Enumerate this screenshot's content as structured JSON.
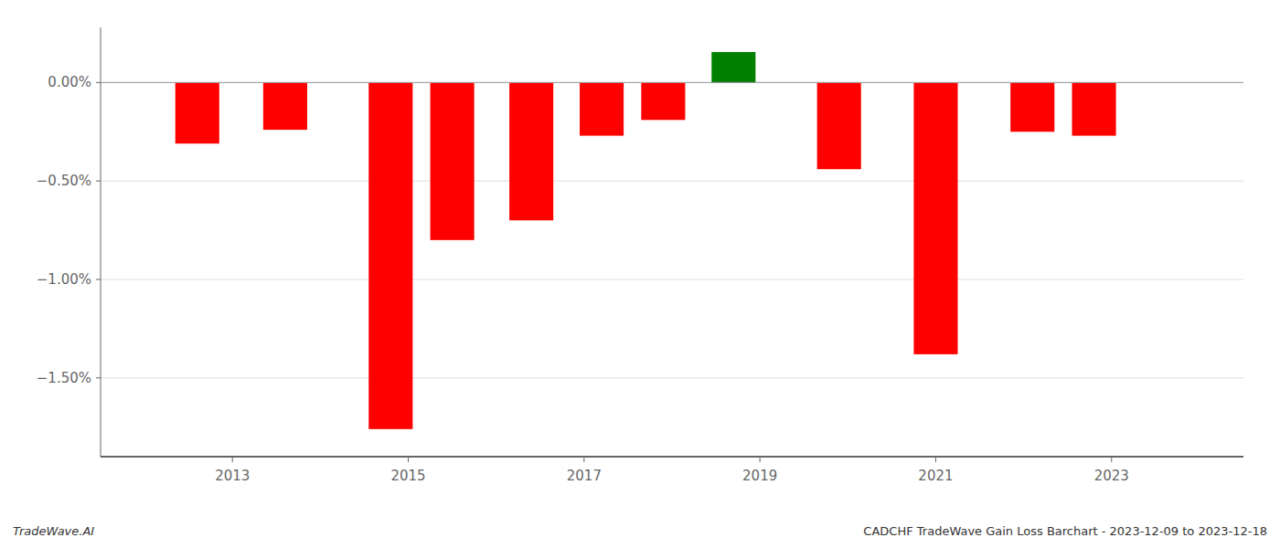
{
  "chart_data": {
    "type": "bar",
    "x": [
      2012.6,
      2013.6,
      2014.8,
      2015.5,
      2016.4,
      2017.2,
      2017.9,
      2018.7,
      2019.9,
      2021.0,
      2022.1,
      2022.8
    ],
    "values": [
      -0.31,
      -0.24,
      -1.76,
      -0.8,
      -0.7,
      -0.27,
      -0.19,
      0.155,
      -0.44,
      -1.38,
      -0.25,
      -0.27
    ],
    "colors": [
      "#ff0000",
      "#ff0000",
      "#ff0000",
      "#ff0000",
      "#ff0000",
      "#ff0000",
      "#ff0000",
      "#008000",
      "#ff0000",
      "#ff0000",
      "#ff0000",
      "#ff0000"
    ],
    "xlim": [
      2011.5,
      2024.5
    ],
    "xticks": [
      2013,
      2015,
      2017,
      2019,
      2021,
      2023
    ],
    "ylim": [
      -1.9,
      0.28
    ],
    "yticks": [
      {
        "value": 0.0,
        "label": "0.00%"
      },
      {
        "value": -0.5,
        "label": "−0.50%"
      },
      {
        "value": -1.0,
        "label": "−1.00%"
      },
      {
        "value": -1.5,
        "label": "−1.50%"
      }
    ],
    "grid": true,
    "annotations": [
      "TradeWave.AI",
      "CADCHF TradeWave Gain Loss Barchart - 2023-12-09 to 2023-12-18"
    ]
  }
}
